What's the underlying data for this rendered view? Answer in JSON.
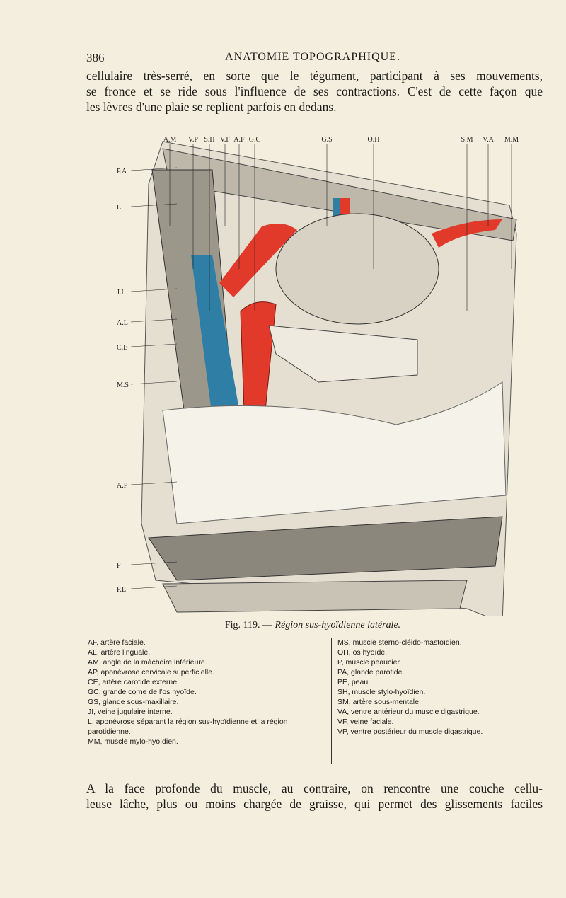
{
  "header": {
    "page_number": "386",
    "title": "ANATOMIE TOPOGRAPHIQUE."
  },
  "paragraph_1": [
    "cellulaire très-serré, en sorte que le tégument, participant à ses mouvements,",
    "se fronce et se ride sous l'influence de ses contractions. C'est de cette façon que",
    "les lèvres d'une plaie se replient parfois en dedans."
  ],
  "figure": {
    "top_labels": [
      "A.M",
      "V.P",
      "S.H",
      "V.F",
      "A.F",
      "G.C",
      "G.S",
      "O.H",
      "S.M",
      "V.A",
      "M.M"
    ],
    "left_labels": [
      "P.A",
      "L",
      "J.I",
      "A.L",
      "C.E",
      "M.S",
      "A.P",
      "P",
      "P.E"
    ],
    "caption_number": "Fig. 119. —",
    "caption_title": "Région sus-hyoïdienne latérale."
  },
  "legend": {
    "left": [
      "AF, artère faciale.",
      "AL, artère linguale.",
      "AM, angle de la mâchoire inférieure.",
      "AP, aponévrose cervicale superficielle.",
      "CE, artère carotide externe.",
      "GC, grande corne de l'os hyoïde.",
      "GS, glande sous-maxillaire.",
      "JI, veine jugulaire interne.",
      "L, aponévrose séparant la région sus-hyoïdienne et la région parotidienne.",
      "MM, muscle mylo-hyoïdien."
    ],
    "right": [
      "MS, muscle sterno-cléido-mastoïdien.",
      "OH, os hyoïde.",
      "P, muscle peaucier.",
      "PA, glande parotide.",
      "PE, peau.",
      "SH, muscle stylo-hyoïdien.",
      "SM, artère sous-mentale.",
      "VA, ventre antérieur du muscle digastrique.",
      "VF, veine faciale.",
      "VP, ventre postérieur du muscle digastrique."
    ]
  },
  "paragraph_2": [
    "A la face profonde du muscle, au contraire, on rencontre une couche cellu-",
    "leuse lâche, plus ou moins chargée de graisse, qui permet des glissements faciles"
  ]
}
